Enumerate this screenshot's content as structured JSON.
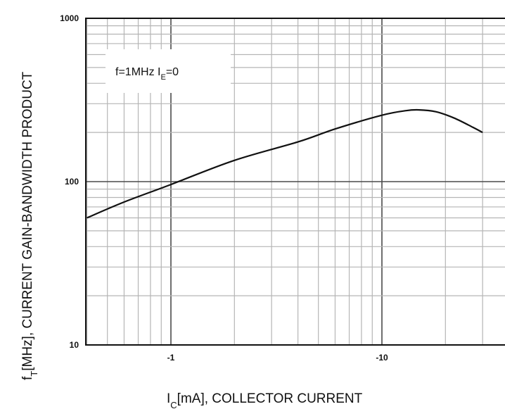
{
  "chart_data": {
    "type": "line",
    "title": "",
    "xlabel": "I_C[mA], COLLECTOR CURRENT",
    "ylabel": "f_T[MHz], CURRENT GAIN-BANDWIDTH PRODUCT",
    "xlabel_parts": {
      "main": "I",
      "sub": "C",
      "rest": "[mA], COLLECTOR CURRENT"
    },
    "ylabel_parts": {
      "main": "f",
      "sub": "T",
      "rest": "[MHz], CURRENT GAIN-BANDWIDTH PRODUCT"
    },
    "annotation": {
      "pre": "f=1MHz I",
      "sub": "E",
      "post": "=0"
    },
    "x_scale": "log",
    "y_scale": "log",
    "x_direction": "reversed-sign (more negative to the right)",
    "xlim": [
      -0.4,
      -30
    ],
    "ylim": [
      10,
      1000
    ],
    "x_ticks": [
      {
        "value": -1,
        "label": "-1"
      },
      {
        "value": -10,
        "label": "-10"
      }
    ],
    "y_ticks": [
      {
        "value": 10,
        "label": "10"
      },
      {
        "value": 100,
        "label": "100"
      },
      {
        "value": 1000,
        "label": "1000"
      }
    ],
    "grid": true,
    "legend": "none",
    "series": [
      {
        "x": [
          -0.4,
          -0.6,
          -1,
          -2,
          -4,
          -6,
          -10,
          -13,
          -15,
          -18,
          -22,
          -27,
          -30
        ],
        "y": [
          60,
          75,
          96,
          135,
          175,
          210,
          255,
          272,
          275,
          268,
          245,
          215,
          200
        ]
      }
    ],
    "colors": {
      "line": "#111111",
      "grid_minor": "#b5b5b5",
      "grid_major": "#4a4a4a",
      "frame": "#111111"
    }
  }
}
